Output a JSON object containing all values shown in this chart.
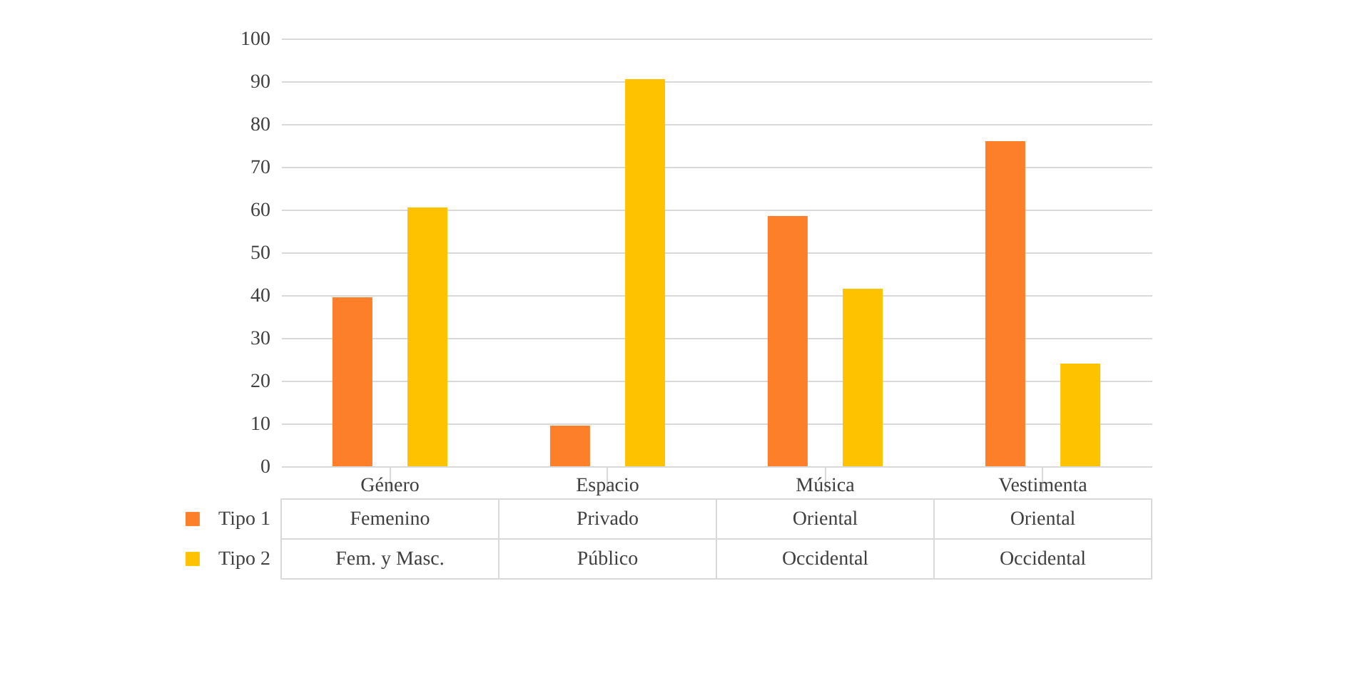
{
  "chart_data": {
    "type": "bar",
    "categories": [
      "Género",
      "Espacio",
      "Música",
      "Vestimenta"
    ],
    "series": [
      {
        "name": "Tipo 1",
        "color": "#fd7f2a",
        "values": [
          39.5,
          9.5,
          58.5,
          76
        ],
        "value_labels": [
          "Femenino",
          "Privado",
          "Oriental",
          "Oriental"
        ]
      },
      {
        "name": "Tipo 2",
        "color": "#fec200",
        "values": [
          60.5,
          90.5,
          41.5,
          24
        ],
        "value_labels": [
          "Fem. y Masc.",
          "Público",
          "Occidental",
          "Occidental"
        ]
      }
    ],
    "ylim": [
      0,
      100
    ],
    "yticks": [
      0,
      10,
      20,
      30,
      40,
      50,
      60,
      70,
      80,
      90,
      100
    ],
    "grid": "y",
    "legend": "bottom"
  }
}
